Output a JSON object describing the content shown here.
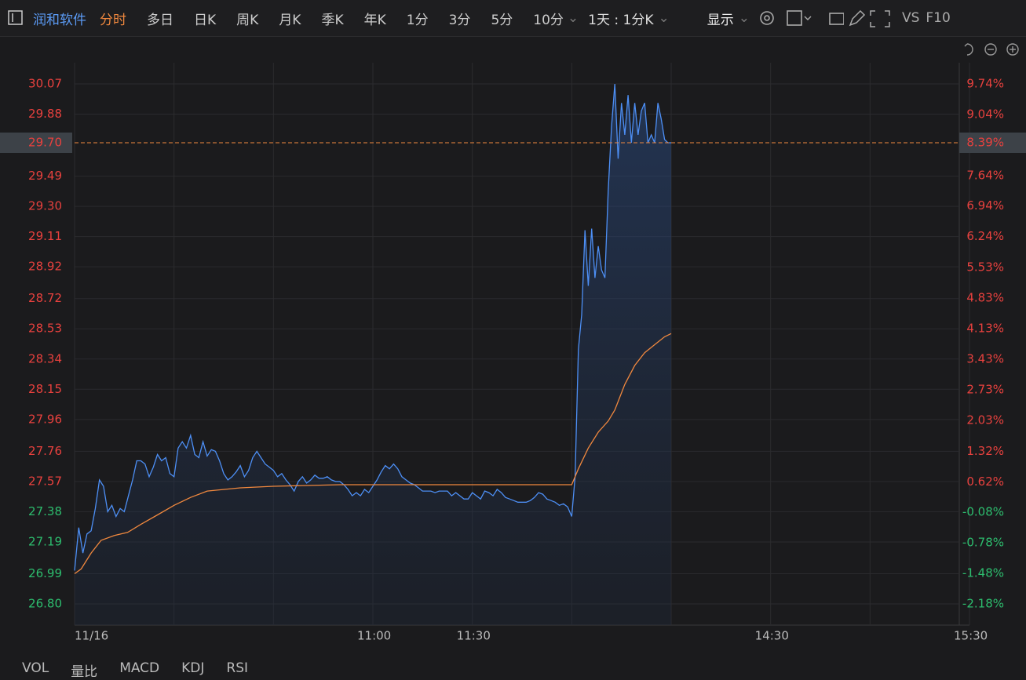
{
  "toolbar": {
    "stock": "润和软件",
    "tabs": [
      "分时",
      "多日",
      "日K",
      "周K",
      "月K",
      "季K",
      "年K",
      "1分",
      "3分",
      "5分",
      "10分"
    ],
    "period": "1天 : 1分K",
    "display": "显示",
    "vs": "VS",
    "f10": "F10"
  },
  "indicator_tabs": [
    "VOL",
    "量比",
    "MACD",
    "KDJ",
    "RSI"
  ],
  "chart_data": {
    "type": "line",
    "xlim": [
      0,
      270
    ],
    "xticks": [
      {
        "value": 0,
        "label": "11/16"
      },
      {
        "value": 90,
        "label": "11:00"
      },
      {
        "value": 120,
        "label": "11:30"
      },
      {
        "value": 210,
        "label": "14:30"
      },
      {
        "value": 270,
        "label": "15:30"
      }
    ],
    "xgrid": [
      0,
      30,
      60,
      90,
      120,
      150,
      180,
      210,
      240,
      270
    ],
    "ylim": [
      26.667,
      30.203
    ],
    "yticks": [
      30.07,
      29.88,
      29.49,
      {
        "value": 29.3,
        "label": "29.30"
      },
      29.11,
      28.92,
      28.72,
      28.53,
      28.34,
      28.15,
      27.96,
      27.76,
      27.57,
      27.38,
      27.19,
      26.99,
      {
        "value": 26.8,
        "label": "26.80"
      }
    ],
    "y2lim": [
      -2.665,
      10.225
    ],
    "y2ticks": [
      {
        "value": 9.74,
        "label": "9.74%"
      },
      {
        "value": 9.04,
        "label": "9.04%"
      },
      {
        "value": 7.64,
        "label": "7.64%"
      },
      {
        "value": 6.94,
        "label": "6.94%"
      },
      {
        "value": 6.24,
        "label": "6.24%"
      },
      {
        "value": 5.53,
        "label": "5.53%"
      },
      {
        "value": 4.83,
        "label": "4.83%"
      },
      {
        "value": 4.13,
        "label": "4.13%"
      },
      {
        "value": 3.43,
        "label": "3.43%"
      },
      {
        "value": 2.73,
        "label": "2.73%"
      },
      {
        "value": 2.03,
        "label": "2.03%"
      },
      {
        "value": 1.32,
        "label": "1.32%"
      },
      {
        "value": 0.62,
        "label": "0.62%"
      },
      {
        "value": -0.08,
        "label": "-0.08%"
      },
      {
        "value": -0.78,
        "label": "-0.78%"
      },
      {
        "value": -1.48,
        "label": "-1.48%"
      },
      {
        "value": -2.18,
        "label": "-2.18%"
      }
    ],
    "last_price": {
      "value": 29.7,
      "label": "29.70"
    },
    "last_pct": {
      "value": 8.39,
      "label": "8.39%"
    },
    "grid": true,
    "series": [
      {
        "name": "price",
        "color": "#4d8ff5",
        "x": [
          0,
          1.25,
          2.5,
          3.75,
          5,
          6.25,
          7.5,
          8.75,
          10,
          11.25,
          12.5,
          13.75,
          15,
          16.25,
          17.5,
          18.75,
          20,
          21.25,
          22.5,
          23.75,
          25,
          26.25,
          27.5,
          28.75,
          30,
          31.25,
          32.5,
          33.75,
          35,
          36.25,
          37.5,
          38.75,
          40,
          41.25,
          42.5,
          43.75,
          45,
          46.25,
          47.5,
          48.75,
          50,
          51.25,
          52.5,
          53.75,
          55,
          56.25,
          57.5,
          58.75,
          60,
          61.25,
          62.5,
          63.75,
          65,
          66.25,
          67.5,
          68.75,
          70,
          71.25,
          72.5,
          73.75,
          75,
          76.25,
          77.5,
          78.75,
          80,
          81.25,
          82.5,
          83.75,
          85,
          86.25,
          87.5,
          88.75,
          90,
          91.25,
          92.5,
          93.75,
          95,
          96.25,
          97.5,
          98.75,
          100,
          101.25,
          102.5,
          103.75,
          105,
          106.25,
          107.5,
          108.75,
          110,
          111.25,
          112.5,
          113.75,
          115,
          116.25,
          117.5,
          118.75,
          120,
          121.25,
          122.5,
          123.75,
          125,
          126.25,
          127.5,
          128.75,
          130,
          131.25,
          132.5,
          133.75,
          135,
          136.25,
          137.5,
          138.75,
          140,
          141.25,
          142.5,
          143.75,
          145,
          146.25,
          147.5,
          148.75,
          150,
          151,
          152,
          153,
          154,
          155,
          156,
          157,
          158,
          159,
          160,
          161,
          162,
          163,
          164,
          165,
          166,
          167,
          168,
          169,
          170,
          171,
          172,
          173,
          174,
          175,
          176,
          177,
          178,
          179,
          180
        ],
        "values": [
          27.01,
          27.28,
          27.12,
          27.24,
          27.26,
          27.4,
          27.58,
          27.54,
          27.38,
          27.42,
          27.35,
          27.4,
          27.38,
          27.48,
          27.58,
          27.7,
          27.7,
          27.68,
          27.6,
          27.66,
          27.74,
          27.7,
          27.72,
          27.62,
          27.6,
          27.78,
          27.82,
          27.78,
          27.86,
          27.74,
          27.72,
          27.82,
          27.73,
          27.77,
          27.76,
          27.7,
          27.62,
          27.58,
          27.6,
          27.63,
          27.67,
          27.6,
          27.64,
          27.72,
          27.76,
          27.72,
          27.68,
          27.66,
          27.64,
          27.6,
          27.62,
          27.58,
          27.55,
          27.51,
          27.57,
          27.6,
          27.56,
          27.58,
          27.61,
          27.59,
          27.59,
          27.6,
          27.58,
          27.57,
          27.57,
          27.55,
          27.52,
          27.48,
          27.5,
          27.48,
          27.52,
          27.5,
          27.54,
          27.58,
          27.63,
          27.67,
          27.65,
          27.68,
          27.65,
          27.6,
          27.58,
          27.56,
          27.55,
          27.53,
          27.51,
          27.51,
          27.51,
          27.5,
          27.51,
          27.51,
          27.51,
          27.48,
          27.5,
          27.48,
          27.46,
          27.46,
          27.5,
          27.48,
          27.46,
          27.51,
          27.5,
          27.48,
          27.52,
          27.5,
          27.47,
          27.46,
          27.45,
          27.44,
          27.44,
          27.44,
          27.45,
          27.47,
          27.5,
          27.49,
          27.46,
          27.45,
          27.44,
          27.42,
          27.43,
          27.41,
          27.35,
          27.6,
          28.4,
          28.62,
          29.15,
          28.8,
          29.16,
          28.85,
          29.05,
          28.9,
          28.85,
          29.4,
          29.8,
          30.07,
          29.6,
          29.95,
          29.75,
          30.0,
          29.7,
          29.95,
          29.75,
          29.9,
          29.95,
          29.7,
          29.75,
          29.7,
          29.95,
          29.85,
          29.72,
          29.7,
          29.7
        ]
      },
      {
        "name": "average",
        "color": "#f0883e",
        "x": [
          0,
          2,
          5,
          8,
          12,
          16,
          20,
          25,
          30,
          35,
          40,
          50,
          60,
          80,
          100,
          120,
          150,
          152,
          155,
          158,
          161,
          163,
          166,
          169,
          172,
          175,
          178,
          180
        ],
        "values": [
          26.99,
          27.02,
          27.12,
          27.2,
          27.23,
          27.25,
          27.3,
          27.36,
          27.42,
          27.47,
          27.51,
          27.53,
          27.54,
          27.55,
          27.55,
          27.55,
          27.55,
          27.65,
          27.78,
          27.88,
          27.95,
          28.02,
          28.18,
          28.3,
          28.38,
          28.43,
          28.48,
          28.5
        ]
      }
    ]
  }
}
